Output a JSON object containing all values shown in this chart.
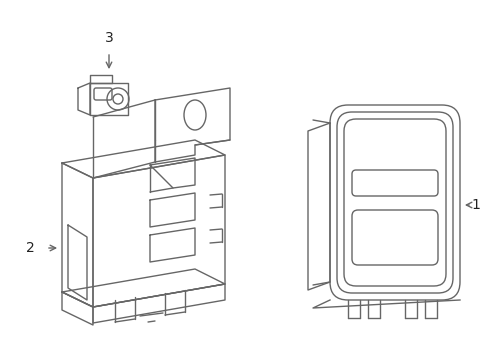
{
  "background_color": "#ffffff",
  "line_color": "#666666",
  "line_width": 1.0,
  "label_fontsize": 10,
  "label_color": "#222222"
}
